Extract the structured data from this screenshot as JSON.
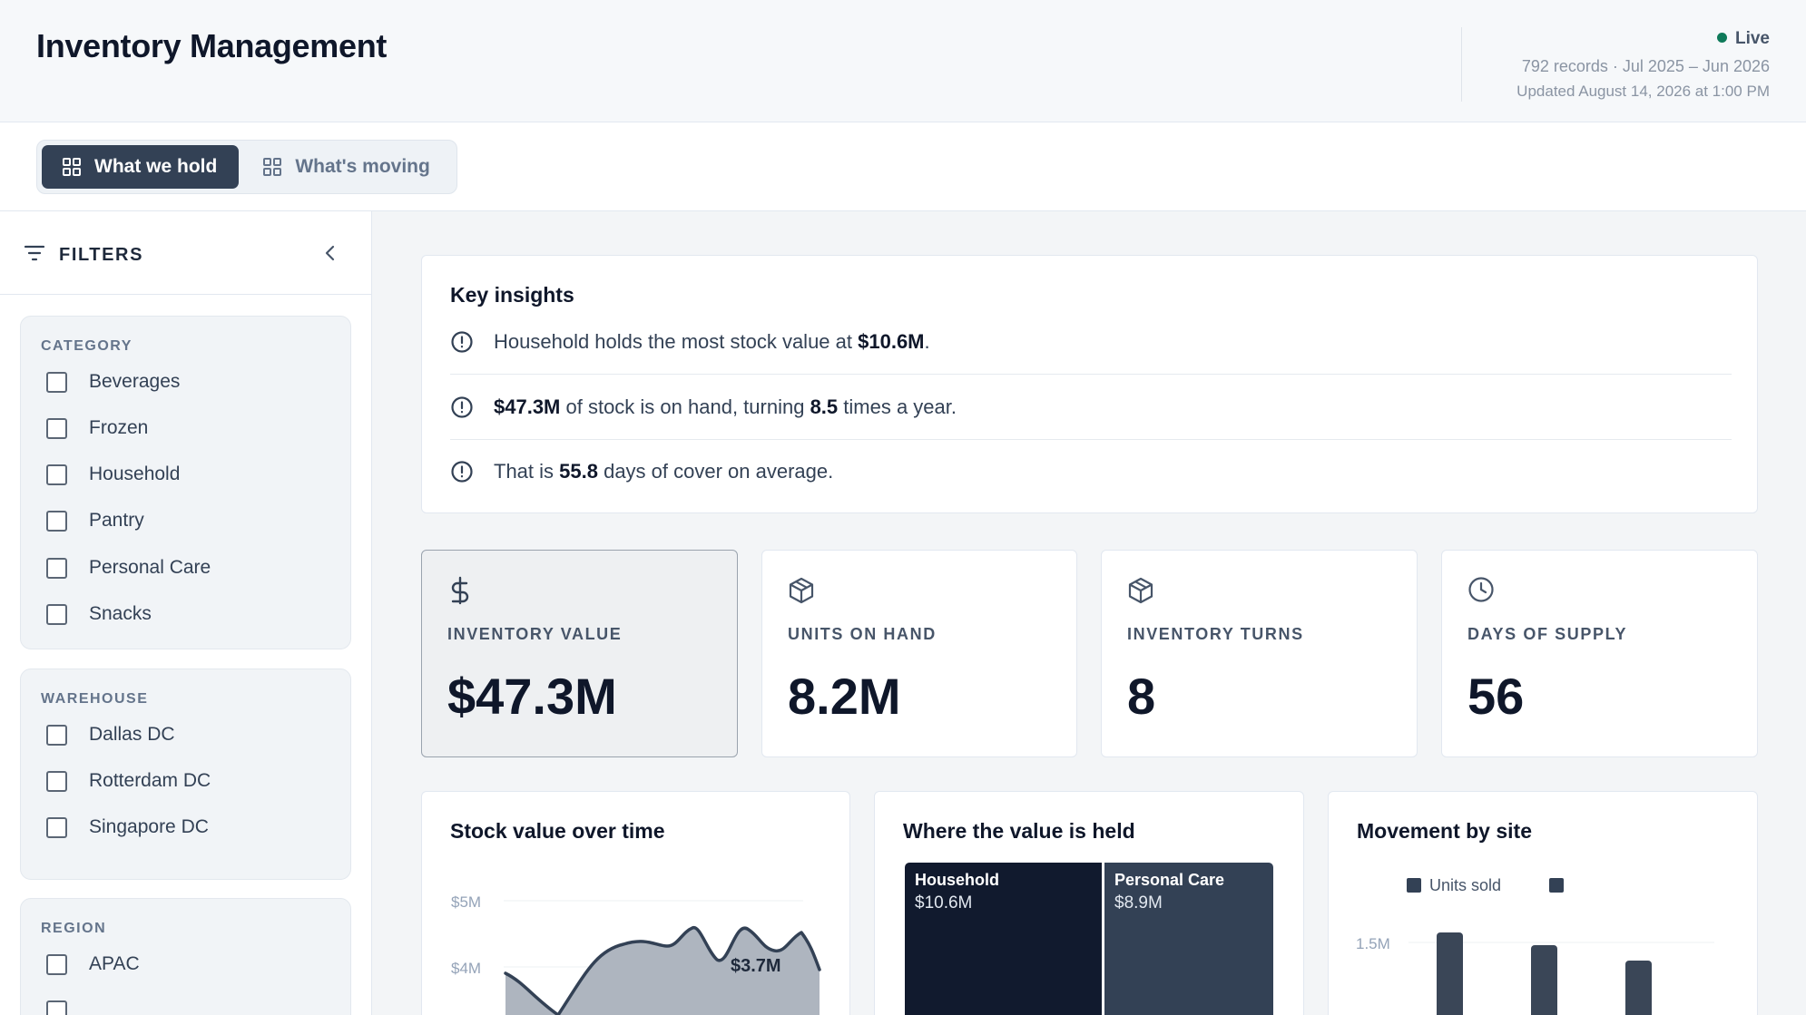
{
  "header": {
    "title": "Inventory Management",
    "status": "Live",
    "records": "792 records · Jul 2025 – Jun 2026",
    "updated": "Updated August 14, 2026 at 1:00 PM",
    "status_color": "#0f7a5a"
  },
  "tabs": [
    {
      "label": "What we hold",
      "icon": "grid-icon",
      "active": true
    },
    {
      "label": "What's moving",
      "icon": "grid-icon",
      "active": false
    }
  ],
  "filters": {
    "title": "FILTERS",
    "groups": [
      {
        "title": "CATEGORY",
        "options": [
          "Beverages",
          "Frozen",
          "Household",
          "Pantry",
          "Personal Care",
          "Snacks"
        ]
      },
      {
        "title": "WAREHOUSE",
        "options": [
          "Dallas DC",
          "Rotterdam DC",
          "Singapore DC"
        ]
      },
      {
        "title": "REGION",
        "options": [
          "APAC"
        ]
      }
    ]
  },
  "insights": {
    "title": "Key insights",
    "items": [
      {
        "parts": [
          "Household holds the most stock value at ",
          "$10.6M",
          "."
        ]
      },
      {
        "parts": [
          "",
          "$47.3M",
          " of stock is on hand, turning ",
          "8.5",
          " times a year."
        ]
      },
      {
        "parts": [
          "That is ",
          "55.8",
          " days of cover on average."
        ]
      }
    ]
  },
  "kpis": [
    {
      "label": "INVENTORY VALUE",
      "value": "$47.3M",
      "icon": "dollar-icon",
      "selected": true
    },
    {
      "label": "UNITS ON HAND",
      "value": "8.2M",
      "icon": "package-icon",
      "selected": false
    },
    {
      "label": "INVENTORY TURNS",
      "value": "8",
      "icon": "package-icon",
      "selected": false
    },
    {
      "label": "DAYS OF SUPPLY",
      "value": "56",
      "icon": "clock-icon",
      "selected": false
    }
  ],
  "charts": {
    "stock_value": {
      "title": "Stock value over time",
      "y_ticks": [
        "$5M",
        "$4M"
      ],
      "end_label": "$3.7M"
    },
    "value_held": {
      "title": "Where the value is held",
      "tiles": [
        {
          "name": "Household",
          "value": "$10.6M",
          "color": "#111a2e"
        },
        {
          "name": "Personal Care",
          "value": "$8.9M",
          "color": "#334155"
        }
      ]
    },
    "movement": {
      "title": "Movement by site",
      "legend": [
        "Units sold",
        ""
      ],
      "y_ticks": [
        "1.5M"
      ],
      "bar_color": "#3a4657"
    }
  }
}
